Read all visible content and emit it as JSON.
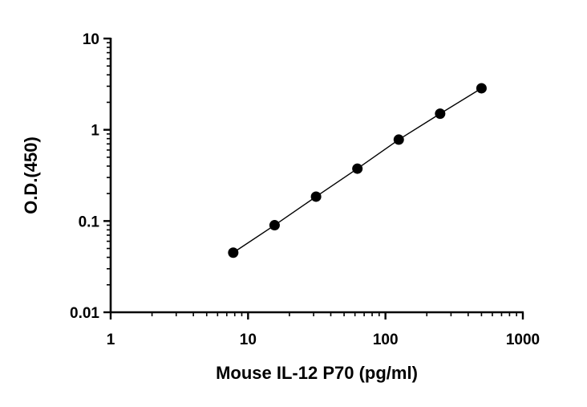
{
  "chart_data": {
    "type": "scatter",
    "title": "",
    "xlabel": "Mouse IL-12 P70 (pg/ml)",
    "ylabel": "O.D.(450)",
    "x_scale": "log",
    "y_scale": "log",
    "xlim": [
      1,
      1000
    ],
    "ylim": [
      0.01,
      10
    ],
    "x_ticks": [
      "1",
      "10",
      "100",
      "1000"
    ],
    "y_ticks": [
      "0.01",
      "0.1",
      "1",
      "10"
    ],
    "grid": false,
    "legend": "none",
    "fit_line": true,
    "series": [
      {
        "x": [
          7.8,
          15.6,
          31.25,
          62.5,
          125,
          250,
          500
        ],
        "y": [
          0.045,
          0.09,
          0.185,
          0.375,
          0.78,
          1.5,
          2.85
        ]
      }
    ],
    "colors": {
      "points": "#000000",
      "line": "#000000",
      "axes": "#000000"
    }
  }
}
